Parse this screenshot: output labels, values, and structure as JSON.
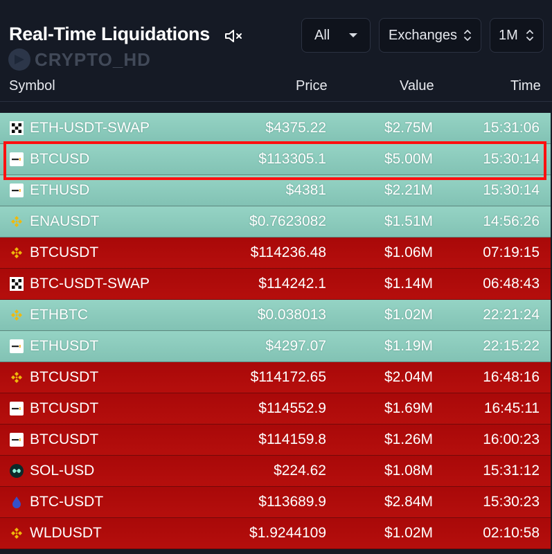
{
  "header": {
    "title": "Real-Time Liquidations",
    "watermark": "CRYPTO_HD",
    "filter_side": "All",
    "filter_exchanges": "Exchanges",
    "filter_timeframe": "1M"
  },
  "columns": {
    "symbol": "Symbol",
    "price": "Price",
    "value": "Value",
    "time": "Time"
  },
  "colors": {
    "long": "#8ecfc0",
    "short": "#b30d0d",
    "highlight": "#ff1010"
  },
  "rows": [
    {
      "exchange_icon": "okx-icon",
      "symbol": "ETH-USDT-SWAP",
      "price": "$4375.22",
      "value": "$2.75M",
      "time": "15:31:06",
      "side": "long"
    },
    {
      "exchange_icon": "bybit-icon",
      "symbol": "BTCUSD",
      "price": "$113305.1",
      "value": "$5.00M",
      "time": "15:30:14",
      "side": "long"
    },
    {
      "exchange_icon": "bybit-icon",
      "symbol": "ETHUSD",
      "price": "$4381",
      "value": "$2.21M",
      "time": "15:30:14",
      "side": "long"
    },
    {
      "exchange_icon": "binance-icon",
      "symbol": "ENAUSDT",
      "price": "$0.7623082",
      "value": "$1.51M",
      "time": "14:56:26",
      "side": "long"
    },
    {
      "exchange_icon": "binance-icon",
      "symbol": "BTCUSDT",
      "price": "$114236.48",
      "value": "$1.06M",
      "time": "07:19:15",
      "side": "short"
    },
    {
      "exchange_icon": "okx-icon",
      "symbol": "BTC-USDT-SWAP",
      "price": "$114242.1",
      "value": "$1.14M",
      "time": "06:48:43",
      "side": "short"
    },
    {
      "exchange_icon": "binance-icon",
      "symbol": "ETHBTC",
      "price": "$0.038013",
      "value": "$1.02M",
      "time": "22:21:24",
      "side": "long"
    },
    {
      "exchange_icon": "bybit-icon",
      "symbol": "ETHUSDT",
      "price": "$4297.07",
      "value": "$1.19M",
      "time": "22:15:22",
      "side": "long"
    },
    {
      "exchange_icon": "binance-icon",
      "symbol": "BTCUSDT",
      "price": "$114172.65",
      "value": "$2.04M",
      "time": "16:48:16",
      "side": "short"
    },
    {
      "exchange_icon": "bybit-icon",
      "symbol": "BTCUSDT",
      "price": "$114552.9",
      "value": "$1.69M",
      "time": "16:45:11",
      "side": "short"
    },
    {
      "exchange_icon": "bybit-icon",
      "symbol": "BTCUSDT",
      "price": "$114159.8",
      "value": "$1.26M",
      "time": "16:00:23",
      "side": "short"
    },
    {
      "exchange_icon": "hyperliquid-icon",
      "symbol": "SOL-USD",
      "price": "$224.62",
      "value": "$1.08M",
      "time": "15:31:12",
      "side": "short"
    },
    {
      "exchange_icon": "drop-icon",
      "symbol": "BTC-USDT",
      "price": "$113689.9",
      "value": "$2.84M",
      "time": "15:30:23",
      "side": "short"
    },
    {
      "exchange_icon": "binance-icon",
      "symbol": "WLDUSDT",
      "price": "$1.9244109",
      "value": "$1.02M",
      "time": "02:10:58",
      "side": "short"
    }
  ]
}
